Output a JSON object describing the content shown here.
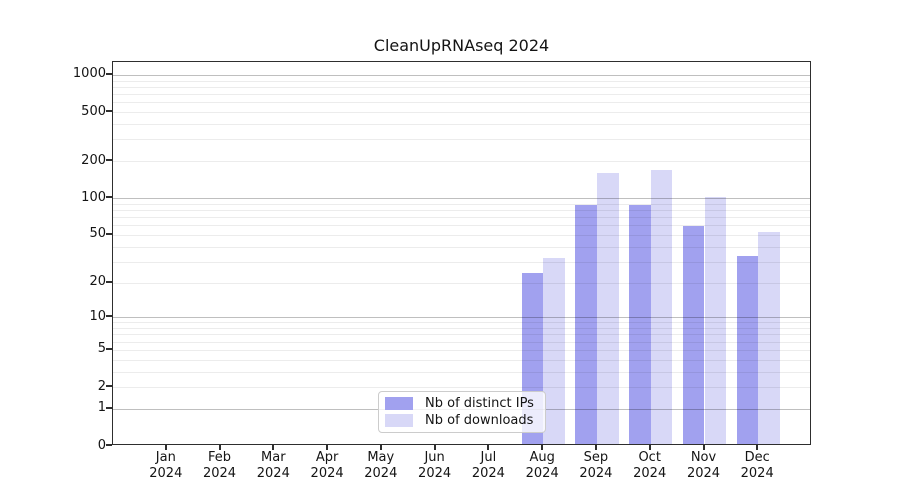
{
  "title": "CleanUpRNAseq 2024",
  "chart_data": {
    "type": "bar",
    "title": "CleanUpRNAseq 2024",
    "categories": [
      "Jan",
      "Feb",
      "Mar",
      "Apr",
      "May",
      "Jun",
      "Jul",
      "Aug",
      "Sep",
      "Oct",
      "Nov",
      "Dec"
    ],
    "x_year": "2024",
    "series": [
      {
        "name": "Nb of distinct IPs",
        "color": "#a1a1ef",
        "values": [
          0,
          0,
          0,
          0,
          0,
          0,
          0,
          23,
          84,
          85,
          57,
          32
        ]
      },
      {
        "name": "Nb of downloads",
        "color": "#d8d8f7",
        "values": [
          0,
          0,
          0,
          0,
          0,
          0,
          0,
          31,
          155,
          162,
          99,
          51
        ]
      }
    ],
    "y_ticks": [
      0,
      1,
      2,
      5,
      10,
      20,
      50,
      100,
      200,
      500,
      1000
    ],
    "scale": "log1p",
    "ylim": [
      0,
      1271
    ],
    "xlabel": "",
    "ylabel": "",
    "grid": true,
    "legend_position": "lower center",
    "colors": {
      "spine": "#2e2e2e",
      "grid_minor": "#e9e9e9",
      "grid_major": "#bfbfbf",
      "background": "#ffffff"
    }
  }
}
